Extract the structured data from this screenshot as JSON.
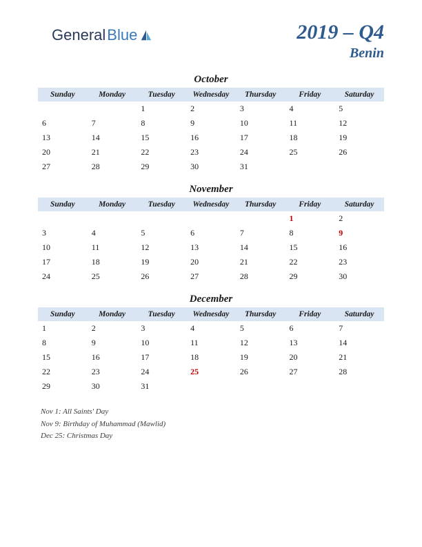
{
  "logo": {
    "text1": "General",
    "text2": "Blue"
  },
  "header": {
    "title": "2019 – Q4",
    "subtitle": "Benin"
  },
  "day_headers": [
    "Sunday",
    "Monday",
    "Tuesday",
    "Wednesday",
    "Thursday",
    "Friday",
    "Saturday"
  ],
  "months": [
    {
      "name": "October",
      "weeks": [
        [
          "",
          "",
          "1",
          "2",
          "3",
          "4",
          "5"
        ],
        [
          "6",
          "7",
          "8",
          "9",
          "10",
          "11",
          "12"
        ],
        [
          "13",
          "14",
          "15",
          "16",
          "17",
          "18",
          "19"
        ],
        [
          "20",
          "21",
          "22",
          "23",
          "24",
          "25",
          "26"
        ],
        [
          "27",
          "28",
          "29",
          "30",
          "31",
          "",
          ""
        ]
      ],
      "holiday_cells": []
    },
    {
      "name": "November",
      "weeks": [
        [
          "",
          "",
          "",
          "",
          "",
          "1",
          "2"
        ],
        [
          "3",
          "4",
          "5",
          "6",
          "7",
          "8",
          "9"
        ],
        [
          "10",
          "11",
          "12",
          "13",
          "14",
          "15",
          "16"
        ],
        [
          "17",
          "18",
          "19",
          "20",
          "21",
          "22",
          "23"
        ],
        [
          "24",
          "25",
          "26",
          "27",
          "28",
          "29",
          "30"
        ]
      ],
      "holiday_cells": [
        [
          0,
          5
        ],
        [
          1,
          6
        ]
      ]
    },
    {
      "name": "December",
      "weeks": [
        [
          "1",
          "2",
          "3",
          "4",
          "5",
          "6",
          "7"
        ],
        [
          "8",
          "9",
          "10",
          "11",
          "12",
          "13",
          "14"
        ],
        [
          "15",
          "16",
          "17",
          "18",
          "19",
          "20",
          "21"
        ],
        [
          "22",
          "23",
          "24",
          "25",
          "26",
          "27",
          "28"
        ],
        [
          "29",
          "30",
          "31",
          "",
          "",
          "",
          ""
        ]
      ],
      "holiday_cells": [
        [
          3,
          3
        ]
      ]
    }
  ],
  "holidays": [
    "Nov 1: All Saints' Day",
    "Nov 9: Birthday of Muhammad (Mawlid)",
    "Dec 25: Christmas Day"
  ],
  "colors": {
    "header_bg": "#dae5f3",
    "title_color": "#2e5a8e",
    "holiday_color": "#c00000",
    "text_color": "#1a1a1a"
  }
}
